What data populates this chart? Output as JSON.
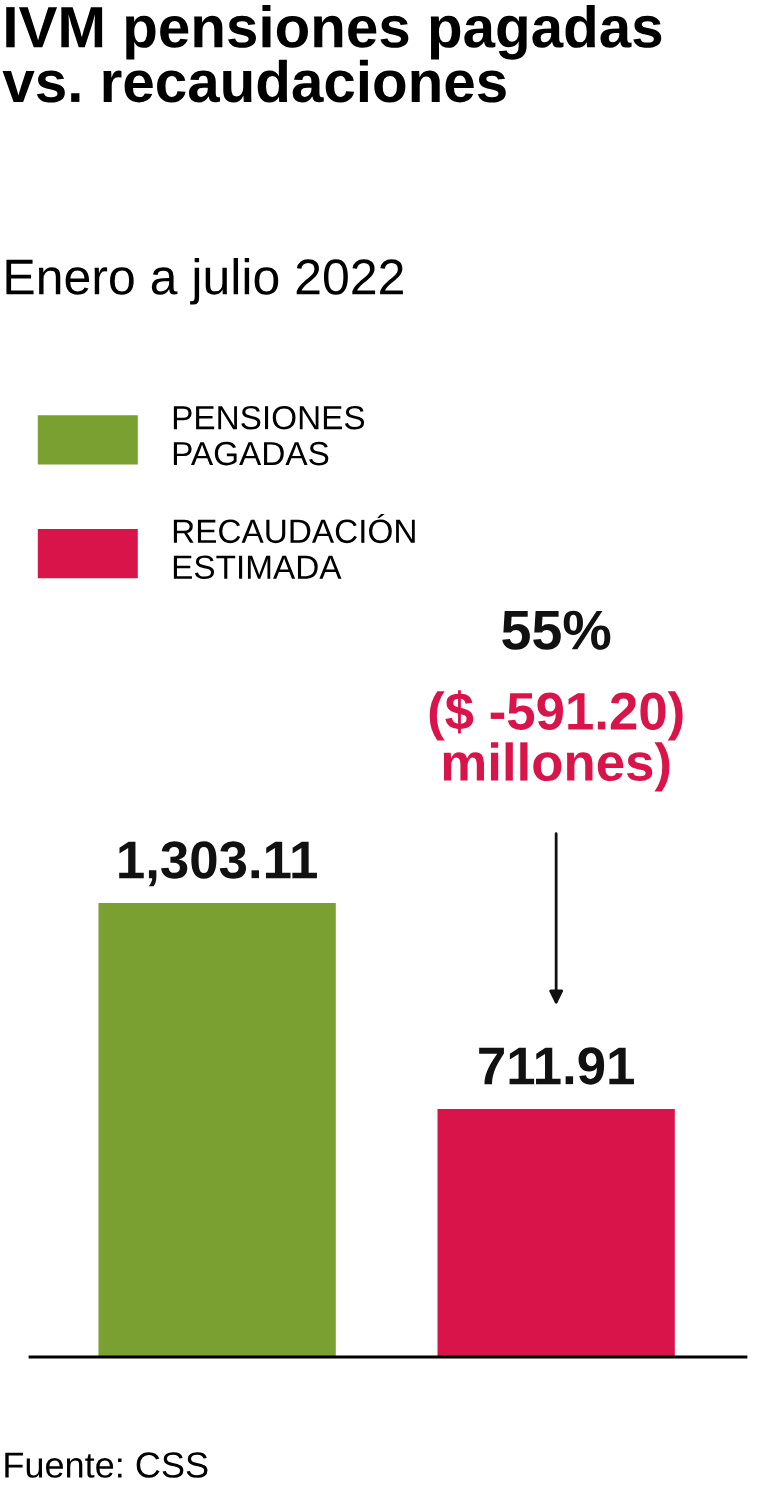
{
  "chart_data": {
    "type": "bar",
    "title": "IVM pensiones pagadas\nvs. recaudaciones",
    "subtitle": "Enero a julio 2022",
    "categories": [
      null,
      null
    ],
    "series": [
      {
        "name": "PENSIONES\nPAGADAS",
        "color": "#7aa032",
        "values": [
          1303.11,
          null
        ],
        "value_labels": [
          "1,303.11",
          null
        ]
      },
      {
        "name": "RECAUDACIÓN\nESTIMADA",
        "color": "#d9144b",
        "values": [
          null,
          711.91
        ],
        "value_labels": [
          null,
          "711.91"
        ]
      }
    ],
    "annotations": [
      "55%",
      "($ -591.20)\nmillones)",
      "Fuente: CSS"
    ],
    "legend": "top left",
    "stacked": true,
    "grid": false
  }
}
